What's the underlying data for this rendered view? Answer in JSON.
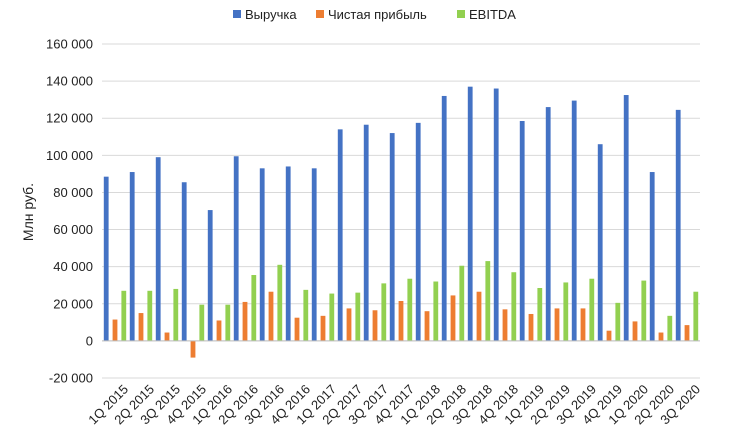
{
  "chart_data": {
    "type": "bar",
    "title": "",
    "xlabel": "",
    "ylabel": "Млн руб.",
    "ylim": [
      -20000,
      160000
    ],
    "yticks": [
      -20000,
      0,
      20000,
      40000,
      60000,
      80000,
      100000,
      120000,
      140000,
      160000
    ],
    "ytick_labels": [
      "-20 000",
      "0",
      "20 000",
      "40 000",
      "60 000",
      "80 000",
      "100 000",
      "120 000",
      "140 000",
      "160 000"
    ],
    "grid": "horizontal",
    "legend_position": "top",
    "categories": [
      "1Q 2015",
      "2Q 2015",
      "3Q 2015",
      "4Q 2015",
      "1Q 2016",
      "2Q 2016",
      "3Q 2016",
      "4Q 2016",
      "1Q 2017",
      "2Q 2017",
      "3Q 2017",
      "4Q 2017",
      "1Q 2018",
      "2Q 2018",
      "3Q 2018",
      "4Q 2018",
      "1Q 2019",
      "2Q 2019",
      "3Q 2019",
      "4Q 2019",
      "1Q 2020",
      "2Q 2020",
      "3Q 2020"
    ],
    "series": [
      {
        "name": "Выручка",
        "color": "#4472C4",
        "values": [
          88500,
          91000,
          99000,
          85500,
          70500,
          99500,
          93000,
          94000,
          93000,
          114000,
          116500,
          112000,
          117500,
          132000,
          137000,
          136000,
          118500,
          126000,
          129500,
          106000,
          132500,
          91000,
          124500
        ]
      },
      {
        "name": "Чистая прибыль",
        "color": "#ED7D31",
        "values": [
          11500,
          15000,
          4500,
          -9000,
          11000,
          21000,
          26500,
          12500,
          13500,
          17500,
          16500,
          21500,
          16000,
          24500,
          26500,
          17000,
          14500,
          17500,
          17500,
          5500,
          10500,
          4500,
          8500
        ]
      },
      {
        "name": "EBITDA",
        "color": "#92D050",
        "values": [
          27000,
          27000,
          28000,
          19500,
          19500,
          35500,
          41000,
          27500,
          25500,
          26000,
          31000,
          33500,
          32000,
          40500,
          43000,
          37000,
          28500,
          31500,
          33500,
          20500,
          32500,
          13500,
          26500
        ]
      }
    ]
  }
}
